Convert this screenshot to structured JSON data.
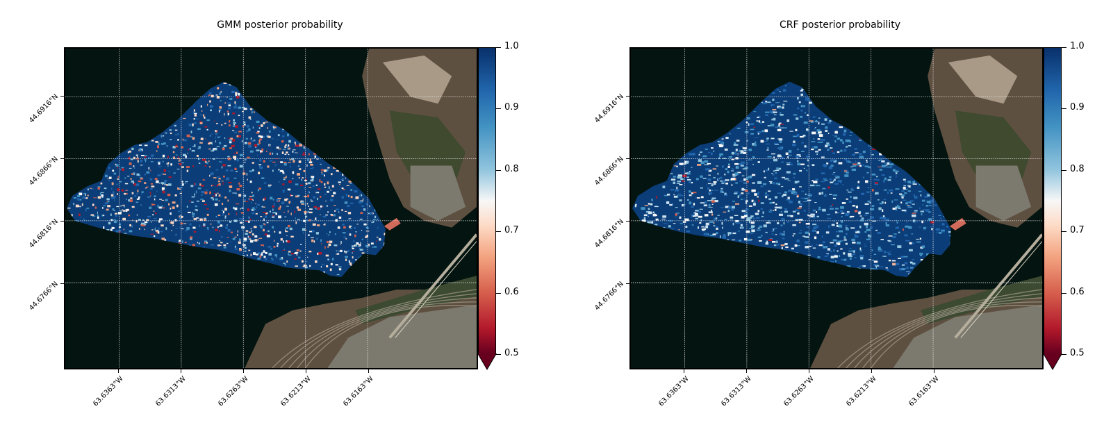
{
  "panels": [
    {
      "title": "GMM posterior probability",
      "variant": "gmm"
    },
    {
      "title": "CRF posterior probability",
      "variant": "crf"
    }
  ],
  "latitude_ticks": [
    "44.6916°N",
    "44.6866°N",
    "44.6816°N",
    "44.6766°N"
  ],
  "longitude_ticks": [
    "63.6363°W",
    "63.6313°W",
    "63.6263°W",
    "63.6213°W",
    "63.6163°W"
  ],
  "colorbar": {
    "min": 0.5,
    "max": 1.0,
    "ticks": [
      "1.0",
      "0.9",
      "0.8",
      "0.7",
      "0.6",
      "0.5"
    ],
    "colormap": "RdBu",
    "extend": "min",
    "colors": {
      "high": "#08306b",
      "mid": "#f7f7f7",
      "low": "#67001f"
    }
  },
  "map_colors": {
    "water": "#041410",
    "land": "#5e5040",
    "forest": "#3f4a2e",
    "urban": "#7c7a6e",
    "region_base": "#0b3d78"
  }
}
